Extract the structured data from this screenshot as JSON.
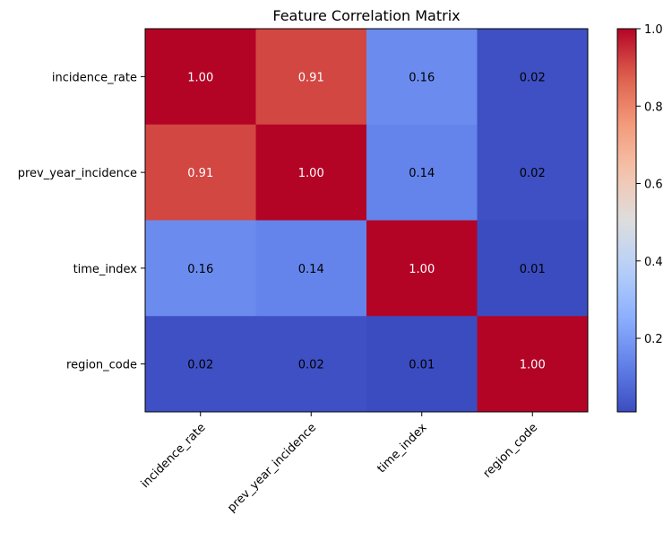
{
  "chart_data": {
    "type": "heatmap",
    "title": "Feature Correlation Matrix",
    "x_labels": [
      "incidence_rate",
      "prev_year_incidence",
      "time_index",
      "region_code"
    ],
    "y_labels": [
      "incidence_rate",
      "prev_year_incidence",
      "time_index",
      "region_code"
    ],
    "values": [
      [
        1.0,
        0.91,
        0.16,
        0.02
      ],
      [
        0.91,
        1.0,
        0.14,
        0.02
      ],
      [
        0.16,
        0.14,
        1.0,
        0.01
      ],
      [
        0.02,
        0.02,
        0.01,
        1.0
      ]
    ],
    "value_labels": [
      [
        "1.00",
        "0.91",
        "0.16",
        "0.02"
      ],
      [
        "0.91",
        "1.00",
        "0.14",
        "0.02"
      ],
      [
        "0.16",
        "0.14",
        "1.00",
        "0.01"
      ],
      [
        "0.02",
        "0.02",
        "0.01",
        "1.00"
      ]
    ],
    "colormap": "coolwarm",
    "colorbar": {
      "range": [
        0.01,
        1.0
      ],
      "ticks": [
        0.2,
        0.4,
        0.6,
        0.8,
        1.0
      ],
      "tick_labels": [
        "0.2",
        "0.4",
        "0.6",
        "0.8",
        "1.0"
      ]
    },
    "colors": {
      "low": "#3b4cc0",
      "mid": "#dddddd",
      "high": "#b40426",
      "text_light": "#ffffff",
      "text_dark": "#000000"
    }
  }
}
